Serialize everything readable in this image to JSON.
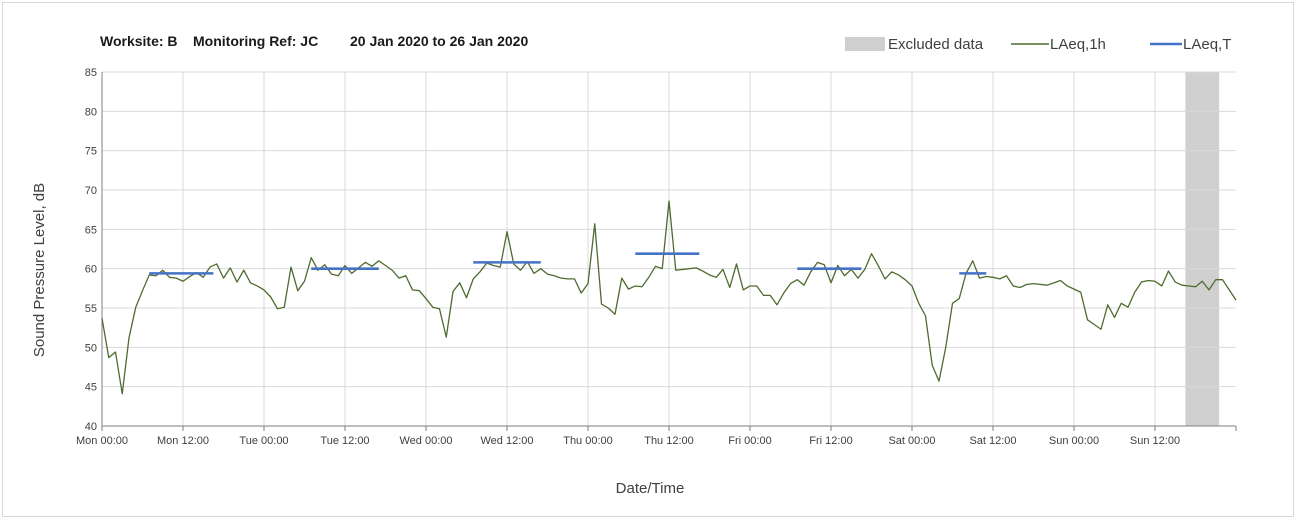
{
  "chart_data": {
    "type": "line",
    "title_parts": [
      "Worksite: B",
      "Monitoring Ref: JC",
      "20 Jan 2020 to 26 Jan 2020"
    ],
    "xlabel": "Date/Time",
    "ylabel": "Sound Pressure Level, dB",
    "ylim": [
      40,
      85
    ],
    "yticks": [
      40,
      45,
      50,
      55,
      60,
      65,
      70,
      75,
      80,
      85
    ],
    "x_unit": "hours from Mon 00:00",
    "xlim": [
      0,
      168
    ],
    "xticks": [
      {
        "x": 0,
        "label": "Mon 00:00"
      },
      {
        "x": 12,
        "label": "Mon 12:00"
      },
      {
        "x": 24,
        "label": "Tue 00:00"
      },
      {
        "x": 36,
        "label": "Tue 12:00"
      },
      {
        "x": 48,
        "label": "Wed 00:00"
      },
      {
        "x": 60,
        "label": "Wed 12:00"
      },
      {
        "x": 72,
        "label": "Thu 00:00"
      },
      {
        "x": 84,
        "label": "Thu 12:00"
      },
      {
        "x": 96,
        "label": "Fri 00:00"
      },
      {
        "x": 108,
        "label": "Fri 12:00"
      },
      {
        "x": 120,
        "label": "Sat 00:00"
      },
      {
        "x": 132,
        "label": "Sat 12:00"
      },
      {
        "x": 144,
        "label": "Sun 00:00"
      },
      {
        "x": 156,
        "label": "Sun 12:00"
      }
    ],
    "grid": "vertical-and-horizontal",
    "legend": {
      "placement": "top-right",
      "entries": [
        {
          "label": "Excluded data",
          "type": "box",
          "color": "#d0d0d0"
        },
        {
          "label": "LAeq,1h",
          "type": "line",
          "color": "#4e6b2f"
        },
        {
          "label": "LAeq,T",
          "type": "line",
          "color": "#4472c4"
        }
      ]
    },
    "excluded_region": {
      "x_start": 160.5,
      "x_end": 165.5,
      "color": "#d0d0d0"
    },
    "series": [
      {
        "name": "LAeq,1h",
        "color": "#4e6b2f",
        "values": [
          53.7,
          48.7,
          49.4,
          44.1,
          51.2,
          55.1,
          57.2,
          59.2,
          59.1,
          59.8,
          58.9,
          58.8,
          58.4,
          59.0,
          59.5,
          58.9,
          60.2,
          60.6,
          58.8,
          60.1,
          58.3,
          59.8,
          58.2,
          57.8,
          57.3,
          56.4,
          54.9,
          55.1,
          60.2,
          57.2,
          58.4,
          61.4,
          59.8,
          60.5,
          59.3,
          59.1,
          60.4,
          59.4,
          60.1,
          60.8,
          60.3,
          61.0,
          60.4,
          59.8,
          58.8,
          59.1,
          57.3,
          57.2,
          56.2,
          55.1,
          54.9,
          51.3,
          57.1,
          58.2,
          56.3,
          58.7,
          59.6,
          60.7,
          60.4,
          60.2,
          64.7,
          60.6,
          59.8,
          60.9,
          59.4,
          60.0,
          59.3,
          59.1,
          58.8,
          58.7,
          58.7,
          56.9,
          58.1,
          65.7,
          55.5,
          55.0,
          54.2,
          58.8,
          57.4,
          57.8,
          57.7,
          58.9,
          60.3,
          60.0,
          68.6,
          59.8,
          59.9,
          60.0,
          60.1,
          59.7,
          59.2,
          58.9,
          59.9,
          57.6,
          60.6,
          57.3,
          57.8,
          57.8,
          56.6,
          56.6,
          55.4,
          56.9,
          58.1,
          58.6,
          57.9,
          59.6,
          60.8,
          60.5,
          58.2,
          60.4,
          59.1,
          59.9,
          58.8,
          59.9,
          61.9,
          60.4,
          58.7,
          59.6,
          59.2,
          58.6,
          57.8,
          55.6,
          54.0,
          47.7,
          45.7,
          50.0,
          55.6,
          56.2,
          59.4,
          61.0,
          58.8,
          59.0,
          58.9,
          58.7,
          59.1,
          57.8,
          57.6,
          58.0,
          58.1,
          58.0,
          57.9,
          58.2,
          58.5,
          57.8,
          57.4,
          57.0,
          53.5,
          52.9,
          52.3,
          55.4,
          53.8,
          55.6,
          55.1,
          57.0,
          58.3,
          58.5,
          58.4,
          57.8,
          59.7,
          58.3,
          57.9,
          57.8,
          57.7,
          58.4,
          57.3,
          58.6,
          58.6,
          57.3,
          56.0
        ]
      },
      {
        "name": "LAeq,T",
        "color": "#4472c4",
        "segments": [
          {
            "x_start": 7,
            "x_end": 16.5,
            "value": 59.4
          },
          {
            "x_start": 31,
            "x_end": 41,
            "value": 60.0
          },
          {
            "x_start": 55,
            "x_end": 65,
            "value": 60.8
          },
          {
            "x_start": 79,
            "x_end": 88.5,
            "value": 61.9
          },
          {
            "x_start": 103,
            "x_end": 112.5,
            "value": 60.0
          },
          {
            "x_start": 127,
            "x_end": 131,
            "value": 59.4
          }
        ]
      }
    ]
  }
}
